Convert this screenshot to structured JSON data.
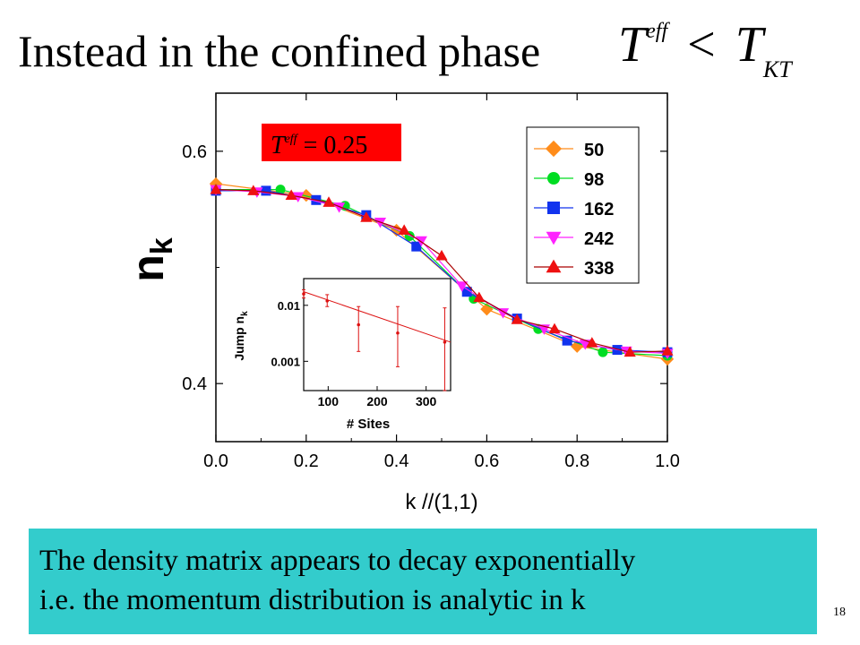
{
  "slide": {
    "title": "Instead in the confined phase",
    "formula": {
      "lhs": "T",
      "lhs_sup": "eff",
      "op": "<",
      "rhs": "T",
      "rhs_sub": "KT"
    },
    "note_line1": "The density matrix appears to decay exponentially",
    "note_line2": "i.e. the momentum distribution is analytic in k",
    "page_number": "18"
  },
  "colors": {
    "note_bg": "#33cccc",
    "annotation_bg": "#ff0000"
  },
  "chart_data": [
    {
      "type": "line",
      "ylabel": "n",
      "ylabel_sub": "k",
      "xlabel": "k //(1,1)",
      "xlim": [
        0.0,
        1.0
      ],
      "ylim": [
        0.35,
        0.65
      ],
      "xticks": [
        "0.0",
        "0.2",
        "0.4",
        "0.6",
        "0.8",
        "1.0"
      ],
      "yticks": [
        "0.4",
        "0.6"
      ],
      "legend_position": "top-right",
      "annotation": {
        "base": "T",
        "sup": "eff",
        "rest": " = 0.25"
      },
      "series": [
        {
          "name": "50",
          "color": "#ff8c1a",
          "marker": "diamond",
          "x": [
            0.0,
            0.2,
            0.4,
            0.6,
            0.8,
            1.0
          ],
          "y": [
            0.572,
            0.562,
            0.532,
            0.464,
            0.432,
            0.421
          ]
        },
        {
          "name": "98",
          "color": "#00dd22",
          "marker": "circle",
          "x": [
            0.0,
            0.143,
            0.286,
            0.429,
            0.571,
            0.714,
            0.857,
            1.0
          ],
          "y": [
            0.567,
            0.567,
            0.553,
            0.527,
            0.473,
            0.447,
            0.427,
            0.424
          ]
        },
        {
          "name": "162",
          "color": "#1133ee",
          "marker": "square",
          "x": [
            0.0,
            0.111,
            0.222,
            0.333,
            0.444,
            0.556,
            0.667,
            0.778,
            0.889,
            1.0
          ],
          "y": [
            0.566,
            0.566,
            0.558,
            0.545,
            0.518,
            0.479,
            0.456,
            0.437,
            0.429,
            0.427
          ]
        },
        {
          "name": "242",
          "color": "#ff22ff",
          "marker": "triangle-down",
          "x": [
            0.0,
            0.091,
            0.182,
            0.273,
            0.364,
            0.455,
            0.545,
            0.636,
            0.727,
            0.818,
            0.909,
            1.0
          ],
          "y": [
            0.567,
            0.565,
            0.561,
            0.552,
            0.539,
            0.523,
            0.484,
            0.461,
            0.447,
            0.434,
            0.428,
            0.426
          ]
        },
        {
          "name": "338",
          "color": "#ee1111",
          "marker": "triangle-up",
          "x": [
            0.0,
            0.083,
            0.167,
            0.25,
            0.333,
            0.417,
            0.5,
            0.583,
            0.667,
            0.75,
            0.833,
            0.917,
            1.0
          ],
          "y": [
            0.567,
            0.566,
            0.562,
            0.556,
            0.543,
            0.532,
            0.51,
            0.474,
            0.455,
            0.447,
            0.435,
            0.427,
            0.428
          ]
        }
      ]
    },
    {
      "type": "scatter",
      "xlabel": "# Sites",
      "ylabel": "Jump n",
      "ylabel_sub": "k",
      "xlim": [
        50,
        350
      ],
      "ylim": [
        0.0003,
        0.03
      ],
      "yscale": "log",
      "xticks": [
        "100",
        "200",
        "300"
      ],
      "yticks": [
        "0.01",
        "0.001"
      ],
      "points": [
        {
          "x": 50,
          "y": 0.016,
          "yerr_low": 0.0135,
          "yerr_high": 0.019
        },
        {
          "x": 98,
          "y": 0.012,
          "yerr_low": 0.0095,
          "yerr_high": 0.0155
        },
        {
          "x": 162,
          "y": 0.0045,
          "yerr_low": 0.0015,
          "yerr_high": 0.0095
        },
        {
          "x": 242,
          "y": 0.0032,
          "yerr_low": 0.0008,
          "yerr_high": 0.0095
        },
        {
          "x": 338,
          "y": 0.0022,
          "yerr_low": 0.0003,
          "yerr_high": 0.009
        }
      ],
      "fit": {
        "x": [
          50,
          350
        ],
        "y": [
          0.0175,
          0.0022
        ]
      }
    }
  ]
}
